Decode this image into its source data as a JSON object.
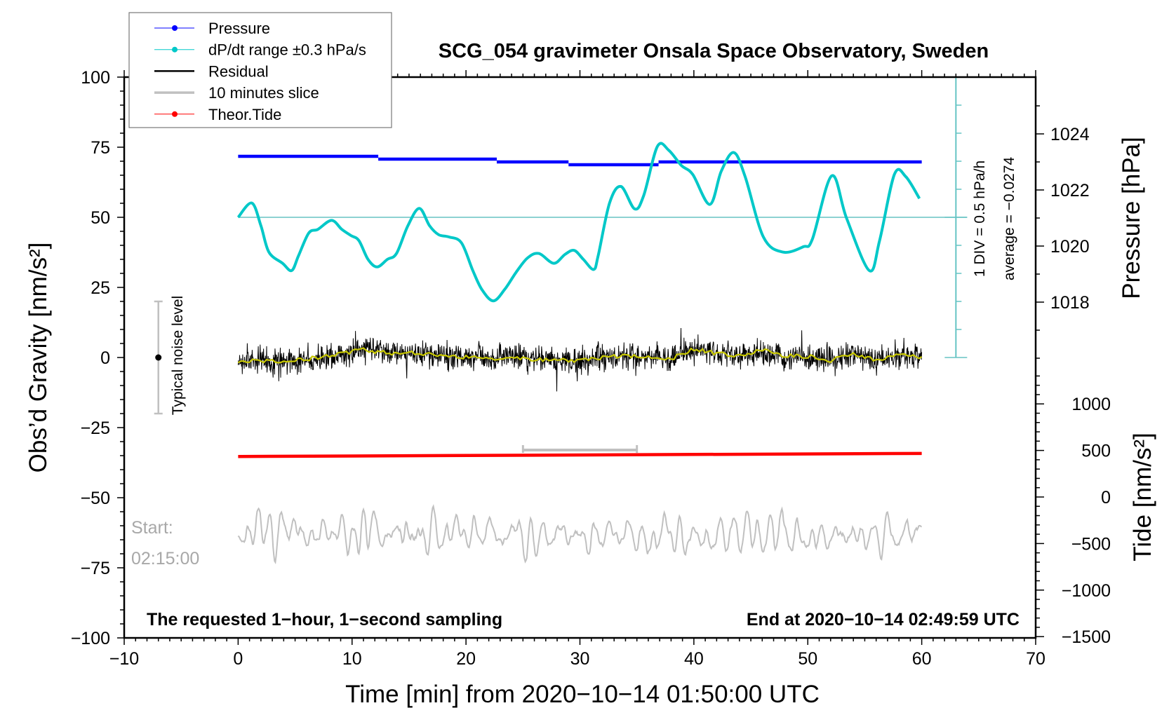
{
  "chart_data": {
    "type": "line",
    "title": "SCG_054 gravimeter Onsala Space Observatory, Sweden",
    "xlabel": "Time [min] from 2020−10−14 01:50:00 UTC",
    "ylabel_left": "Obs’d Gravity [nm/s²]",
    "ylabel_right_pressure": "Pressure [hPa]",
    "ylabel_right_tide": "Tide [nm/s²]",
    "xlim": [
      -10,
      70
    ],
    "ylim_left": [
      -100,
      100
    ],
    "x_ticks": [
      -10,
      0,
      10,
      20,
      30,
      40,
      50,
      60,
      70
    ],
    "x_tick_labels": [
      "−10",
      "0",
      "10",
      "20",
      "30",
      "40",
      "50",
      "60",
      "70"
    ],
    "y_ticks_left": [
      100,
      75,
      50,
      25,
      0,
      -25,
      -50,
      -75,
      -100
    ],
    "y_tick_labels_left": [
      "100",
      "75",
      "50",
      "25",
      "0",
      "−25",
      "−50",
      "−75",
      "−100"
    ],
    "pressure_ticks": [
      1024,
      1022,
      1020,
      1018
    ],
    "pressure_tick_labels": [
      "1024",
      "1022",
      "1020",
      "1018"
    ],
    "tide_ticks": [
      1000,
      500,
      0,
      -500,
      -1000,
      -1500
    ],
    "tide_tick_labels": [
      "1000",
      "500",
      "0",
      "−500",
      "−1000",
      "−1500"
    ],
    "grid": false,
    "legend": {
      "position": "top-left",
      "entries": [
        {
          "label": "Pressure",
          "color": "#0000ff",
          "marker": true
        },
        {
          "label": "dP/dt range ±0.3 hPa/s",
          "color": "#00c8c8",
          "marker": true
        },
        {
          "label": "Residual",
          "color": "#000000",
          "marker": false
        },
        {
          "label": "10 minutes slice",
          "color": "#c0c0c0",
          "marker": false
        },
        {
          "label": "Theor.Tide",
          "color": "#ff0000",
          "marker": true
        }
      ]
    },
    "series": {
      "pressure_hPa": {
        "name": "Pressure",
        "color": "#0000ff",
        "segments": [
          {
            "from": 0,
            "to": 12.3,
            "value": 1023.2
          },
          {
            "from": 12.3,
            "to": 22.7,
            "value": 1023.1
          },
          {
            "from": 22.7,
            "to": 29.0,
            "value": 1023.0
          },
          {
            "from": 29.0,
            "to": 36.9,
            "value": 1022.9
          },
          {
            "from": 36.9,
            "to": 60.0,
            "value": 1023.0
          }
        ]
      },
      "dpdt": {
        "name": "dP/dt",
        "color": "#00c8c8",
        "baseline": 50,
        "x": [
          0,
          1.2,
          2,
          2.7,
          3.9,
          4.7,
          5.3,
          6.2,
          7,
          8.2,
          9.1,
          9.9,
          10.6,
          11.4,
          12.2,
          13.1,
          13.9,
          14.9,
          15.9,
          16.8,
          17.6,
          18.5,
          19.6,
          20.6,
          21.4,
          22.4,
          23.4,
          24.4,
          25.4,
          26.4,
          27.7,
          28.7,
          29.5,
          30.3,
          31.2,
          31.6,
          32.6,
          33.6,
          34.8,
          35.6,
          36.8,
          37.8,
          38.9,
          39.9,
          41.4,
          42.4,
          43.5,
          44.5,
          46.1,
          47.8,
          49.6,
          50.4,
          52.1,
          53.4,
          55.4,
          56.3,
          57.6,
          58.6,
          59.8
        ],
        "y": [
          50,
          55.1,
          47,
          37.6,
          33.6,
          31,
          36.3,
          44.4,
          45.7,
          48.9,
          45.7,
          43.5,
          41.7,
          35,
          32.3,
          35,
          37.1,
          47,
          53.2,
          47,
          43.8,
          43,
          40.9,
          31,
          24.2,
          20.2,
          24.3,
          30.4,
          35.5,
          37.1,
          33.6,
          36.8,
          38.2,
          35,
          31.4,
          36.3,
          55.1,
          61,
          53,
          57.8,
          75.3,
          73.9,
          68.5,
          65.3,
          54.6,
          66.4,
          73.1,
          64.5,
          43,
          37.6,
          39.5,
          42.2,
          64.8,
          49.7,
          31,
          41.7,
          65.3,
          64.5,
          56.7
        ]
      },
      "residual_smoothed": {
        "name": "Residual (smoothed)",
        "color": "#c8c800",
        "x": [
          0,
          2,
          4,
          6,
          8,
          10,
          11,
          12,
          14,
          16,
          18,
          20,
          22,
          24,
          26,
          28,
          30,
          32,
          34,
          36,
          38,
          40,
          42,
          44,
          46,
          48,
          50,
          52,
          54,
          56,
          58,
          60
        ],
        "y": [
          -1.5,
          -1,
          -1.5,
          -0.5,
          0.5,
          2,
          3,
          2,
          1.5,
          1.5,
          0.5,
          0,
          -0.3,
          -0.5,
          -0.5,
          -1,
          -1,
          0,
          0.5,
          0,
          -0.5,
          3,
          1.5,
          0.5,
          2.5,
          0.5,
          0.5,
          -1,
          1,
          -1,
          1,
          0
        ]
      },
      "residual": {
        "name": "Residual",
        "color": "#000000",
        "noise_sd": 2.3,
        "spike_max": 11
      },
      "slice": {
        "name": "10 minutes slice",
        "color": "#c0c0c0",
        "offset": -63,
        "amplitude": 6,
        "from_min": 25,
        "to_min": 35,
        "bracket_level": -33
      },
      "tide": {
        "name": "Theor.Tide",
        "color": "#ff0000",
        "x": [
          0,
          60
        ],
        "y": [
          435,
          468
        ]
      }
    },
    "noise_bar": {
      "x": -7,
      "center": 0,
      "half_range": 20,
      "label": "Typical noise level"
    },
    "dpdt_scale": {
      "x": 63,
      "from": 0,
      "to": 100,
      "div": 10,
      "label": "1 DIV = 0.5 hPa/h",
      "average_label": "average = −0.0274"
    },
    "annotations": {
      "bottom_left": "The requested 1−hour, 1−second sampling",
      "bottom_right": "End at 2020−10−14 02:49:59 UTC",
      "start_label": "Start:",
      "start_time": "02:15:00"
    }
  }
}
